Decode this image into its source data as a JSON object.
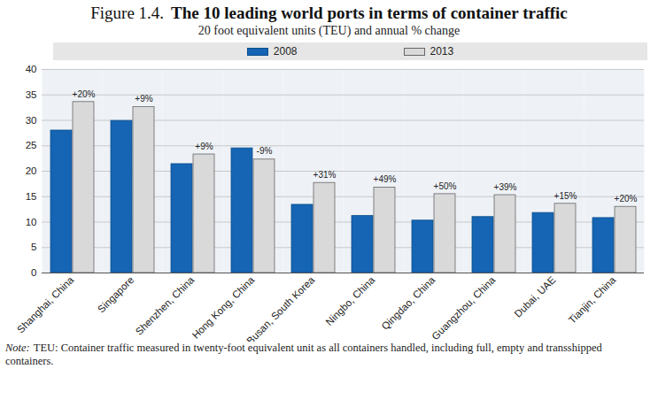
{
  "chart_data": {
    "type": "bar",
    "figure_number": "Figure 1.4.",
    "title": "The 10 leading world ports in terms of container traffic",
    "subtitle": "20 foot equivalent units (TEU) and annual % change",
    "categories": [
      "Shanghai, China",
      "Singapore",
      "Shenzhen, China",
      "Hong Kong, China",
      "Busan, South Korea",
      "Ningbo, China",
      "Qingdao, China",
      "Guangzhou, China",
      "Dubai, UAE",
      "Tianjin, China"
    ],
    "series": [
      {
        "name": "2008",
        "color": "#1565b4",
        "values": [
          28.0,
          29.9,
          21.4,
          24.5,
          13.4,
          11.2,
          10.3,
          11.0,
          11.8,
          10.8
        ]
      },
      {
        "name": "2013",
        "color": "#d9d9d9",
        "values": [
          33.6,
          32.6,
          23.3,
          22.3,
          17.7,
          16.8,
          15.5,
          15.3,
          13.6,
          13.0
        ]
      }
    ],
    "annotations": [
      "+20%",
      "+9%",
      "+9%",
      "-9%",
      "+31%",
      "+49%",
      "+50%",
      "+39%",
      "+15%",
      "+20%"
    ],
    "ylim": [
      0,
      40
    ],
    "yticks": [
      0,
      5,
      10,
      15,
      20,
      25,
      30,
      35,
      40
    ],
    "grid": true,
    "legend": "top",
    "note_label": "Note:",
    "note": "TEU: Container traffic measured in twenty-foot equivalent unit as all containers handled, including full, empty and transshipped containers."
  }
}
